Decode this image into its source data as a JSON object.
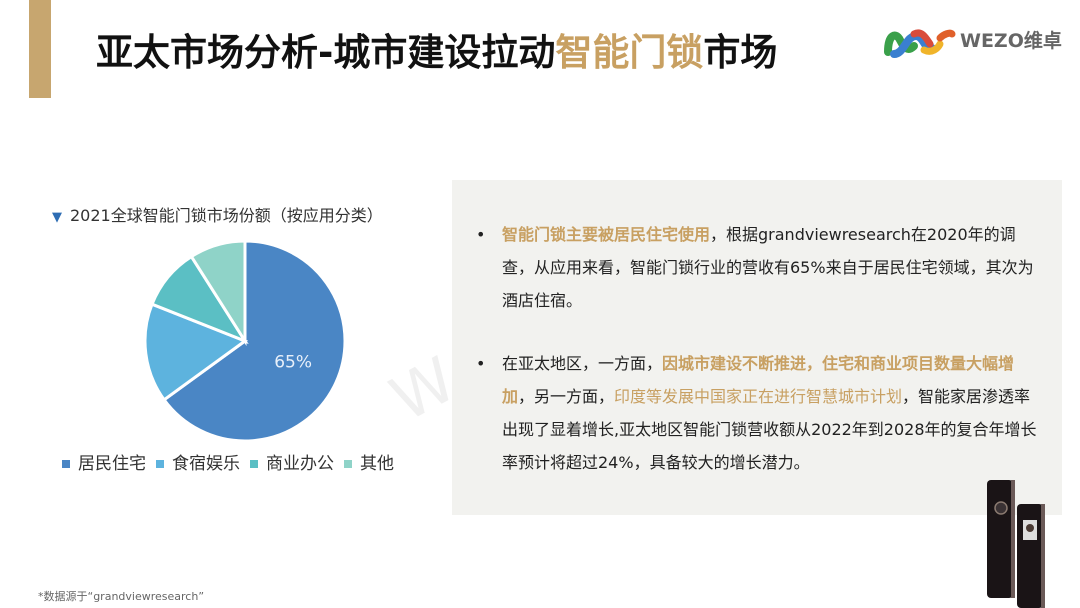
{
  "header": {
    "title_part1": "亚太市场分析-城市建设拉动",
    "title_highlight": "智能门锁",
    "title_part2": "市场",
    "accent_color": "#c7a66f",
    "highlight_color": "#c8a062"
  },
  "logo": {
    "text": "WEZO维卓"
  },
  "watermark": "WEZO维卓",
  "chart_data": {
    "type": "pie",
    "title": "2021全球智能门锁市场份额（按应用分类）",
    "categories": [
      "居民住宅",
      "食宿娱乐",
      "商业办公",
      "其他"
    ],
    "values": [
      65,
      16,
      10,
      9
    ],
    "colors": [
      "#4a86c5",
      "#5db3de",
      "#5bbfc4",
      "#8fd3c8"
    ],
    "data_labels": [
      "65%",
      "",
      "",
      ""
    ],
    "start_angle": "top, clockwise",
    "legend_position": "bottom"
  },
  "panel": {
    "bullet1": {
      "bullet": "•",
      "highlight": "智能门锁主要被居民住宅使用",
      "rest": "，根据grandviewresearch在2020年的调查，从应用来看，智能门锁行业的营收有65%来自于居民住宅领域，其次为酒店住宿。"
    },
    "bullet2": {
      "bullet": "•",
      "pre": "在亚太地区，一方面，",
      "highlight1": "因城市建设不断推进，住宅和商业项目数量大幅增加",
      "mid": "，另一方面，",
      "highlight2": "印度等发展中国家正在进行智慧城市计划",
      "rest": "，智能家居渗透率出现了显着增长,亚太地区智能门锁营收额从2022年到2028年的复合年增长率预计将超过24%，具备较大的增长潜力。"
    }
  },
  "source": "*数据源于“grandviewresearch”"
}
